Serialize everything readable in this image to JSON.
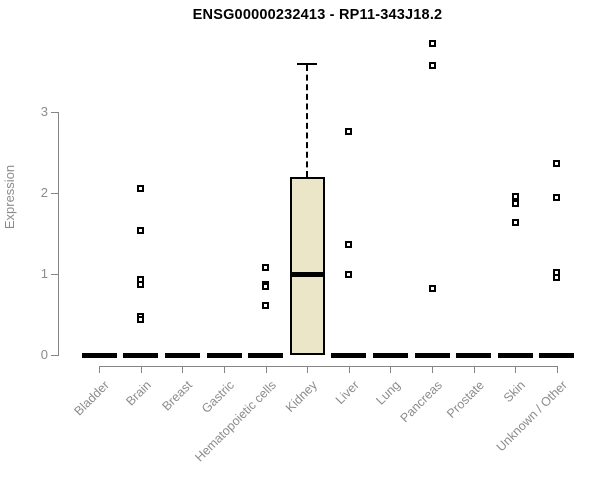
{
  "chart_data": {
    "type": "box",
    "title": "ENSG00000232413 - RP11-343J18.2",
    "ylabel": "Expression",
    "xlabel": "",
    "y_ticks": [
      0,
      1,
      2,
      3
    ],
    "ylim": [
      0,
      3.9
    ],
    "grid": false,
    "legend": "none",
    "categories": [
      "Bladder",
      "Brain",
      "Breast",
      "Gastric",
      "Hematopoietic cells",
      "Kidney",
      "Liver",
      "Lung",
      "Pancreas",
      "Prostate",
      "Skin",
      "Unknown / Other"
    ],
    "boxes": [
      {
        "category": "Bladder",
        "q1": 0,
        "median": 0,
        "q3": 0,
        "whisker_low": 0,
        "whisker_high": 0,
        "outliers": []
      },
      {
        "category": "Brain",
        "q1": 0,
        "median": 0,
        "q3": 0,
        "whisker_low": 0,
        "whisker_high": 0,
        "outliers": [
          2.06,
          1.54,
          0.93,
          0.87,
          0.47,
          0.44
        ]
      },
      {
        "category": "Breast",
        "q1": 0,
        "median": 0,
        "q3": 0,
        "whisker_low": 0,
        "whisker_high": 0,
        "outliers": []
      },
      {
        "category": "Gastric",
        "q1": 0,
        "median": 0,
        "q3": 0,
        "whisker_low": 0,
        "whisker_high": 0,
        "outliers": []
      },
      {
        "category": "Hematopoietic cells",
        "q1": 0,
        "median": 0,
        "q3": 0,
        "whisker_low": 0,
        "whisker_high": 0,
        "outliers": [
          1.08,
          0.87,
          0.84,
          0.61
        ]
      },
      {
        "category": "Kidney",
        "q1": 0,
        "median": 1.0,
        "q3": 2.2,
        "whisker_low": 0,
        "whisker_high": 3.6,
        "outliers": []
      },
      {
        "category": "Liver",
        "q1": 0,
        "median": 0,
        "q3": 0,
        "whisker_low": 0,
        "whisker_high": 0,
        "outliers": [
          2.76,
          1.36,
          1.0
        ]
      },
      {
        "category": "Lung",
        "q1": 0,
        "median": 0,
        "q3": 0,
        "whisker_low": 0,
        "whisker_high": 0,
        "outliers": []
      },
      {
        "category": "Pancreas",
        "q1": 0,
        "median": 0,
        "q3": 0,
        "whisker_low": 0,
        "whisker_high": 0,
        "outliers": [
          3.85,
          3.58,
          0.82
        ]
      },
      {
        "category": "Prostate",
        "q1": 0,
        "median": 0,
        "q3": 0,
        "whisker_low": 0,
        "whisker_high": 0,
        "outliers": []
      },
      {
        "category": "Skin",
        "q1": 0,
        "median": 0,
        "q3": 0,
        "whisker_low": 0,
        "whisker_high": 0,
        "outliers": [
          1.96,
          1.87,
          1.64
        ]
      },
      {
        "category": "Unknown / Other",
        "q1": 0,
        "median": 0,
        "q3": 0,
        "whisker_low": 0,
        "whisker_high": 0,
        "outliers": [
          2.36,
          1.95,
          1.02,
          0.96
        ]
      }
    ],
    "colors": {
      "box_fill": "#ECE6C9",
      "box_border": "#000000",
      "median": "#000000",
      "axis_line": "#858585",
      "tick_text": "#8C8C8C",
      "title_text": "#000000"
    }
  }
}
